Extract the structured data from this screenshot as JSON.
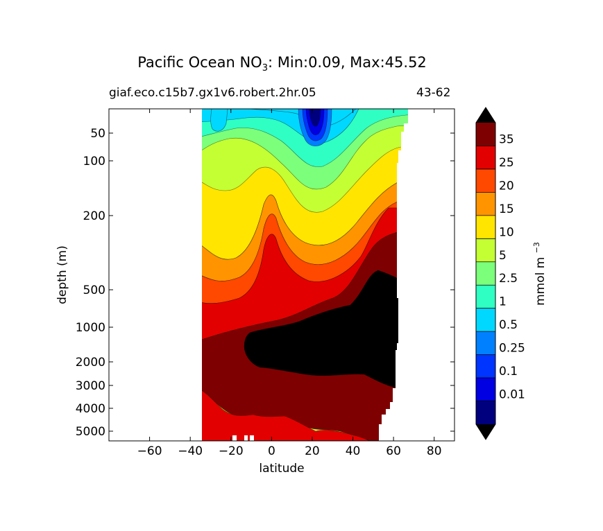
{
  "title": {
    "prefix": "Pacific Ocean NO",
    "sub": "3",
    "suffix": ": Min:0.09, Max:45.52"
  },
  "subtitle_left": "giaf.eco.c15b7.gx1v6.robert.2hr.05",
  "subtitle_right": "43-62",
  "chart_data": {
    "type": "contour",
    "xlabel": "latitude",
    "ylabel": "depth (m)",
    "xlim": [
      -80,
      90
    ],
    "xticks": [
      "−60",
      "−40",
      "−20",
      "0",
      "20",
      "40",
      "60",
      "80"
    ],
    "xtick_values": [
      -60,
      -40,
      -20,
      0,
      20,
      40,
      60,
      80
    ],
    "y_scale": "piecewise",
    "yticks": [
      "50",
      "100",
      "200",
      "500",
      "1000",
      "2000",
      "3000",
      "4000",
      "5000"
    ],
    "ytick_values": [
      50,
      100,
      200,
      500,
      1000,
      2000,
      3000,
      4000,
      5000
    ],
    "data_extent": {
      "lat_min": -34,
      "lat_max": 66
    },
    "colorbar": {
      "label": "mmol m",
      "label_sup": "−3",
      "extend": "both",
      "tick_labels": [
        "0.01",
        "0.1",
        "0.25",
        "0.5",
        "1",
        "2.5",
        "5",
        "10",
        "15",
        "20",
        "25",
        "35"
      ],
      "colors": [
        "#00007f",
        "#0000e3",
        "#0034ff",
        "#0080ff",
        "#00d8ff",
        "#30ffc4",
        "#7cff7a",
        "#c4ff33",
        "#ffe500",
        "#ff9400",
        "#ff4800",
        "#e30000",
        "#7f0000"
      ],
      "under_color": "#000000",
      "over_color": "#000000"
    },
    "field_description_levels": [
      0.01,
      0.1,
      0.25,
      0.5,
      1,
      2.5,
      5,
      10,
      15,
      20,
      25,
      35,
      40
    ]
  }
}
